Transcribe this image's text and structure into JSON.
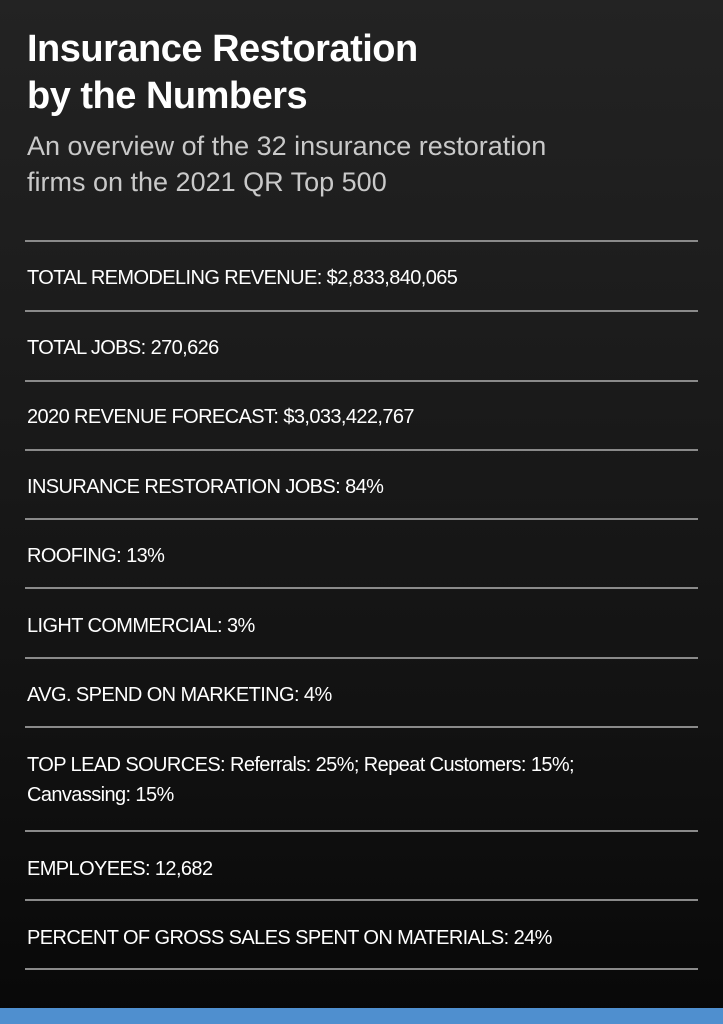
{
  "title_lines": [
    "Insurance Restoration",
    "by the Numbers"
  ],
  "subtitle_lines": [
    "An overview of the 32 insurance restoration",
    "firms on the 2021 QR Top 500"
  ],
  "stats": [
    {
      "label": "TOTAL REMODELING REVENUE:",
      "value": "$2,833,840,065"
    },
    {
      "label": "TOTAL JOBS:",
      "value": "270,626"
    },
    {
      "label": "2020 REVENUE FORECAST:",
      "value": "$3,033,422,767"
    },
    {
      "label": "INSURANCE RESTORATION JOBS:",
      "value": "84%"
    },
    {
      "label": "ROOFING:",
      "value": "13%"
    },
    {
      "label": "LIGHT COMMERCIAL:",
      "value": "3%"
    },
    {
      "label": "AVG. SPEND ON MARKETING:",
      "value": "4%"
    },
    {
      "label": "TOP LEAD SOURCES:",
      "value": "Referrals: 25%; Repeat Customers: 15%;",
      "value_line2": "Canvassing: 15%"
    },
    {
      "label": "EMPLOYEES:",
      "value": "12,682"
    },
    {
      "label": "PERCENT OF GROSS SALES SPENT ON MATERIALS:",
      "value": "24%"
    }
  ],
  "colors": {
    "background_top": "#232323",
    "background_bottom": "#080808",
    "text": "#ffffff",
    "subtitle": "#c9c9c9",
    "divider": "#8a8a8a",
    "accent_bar": "#4f8fcf"
  }
}
